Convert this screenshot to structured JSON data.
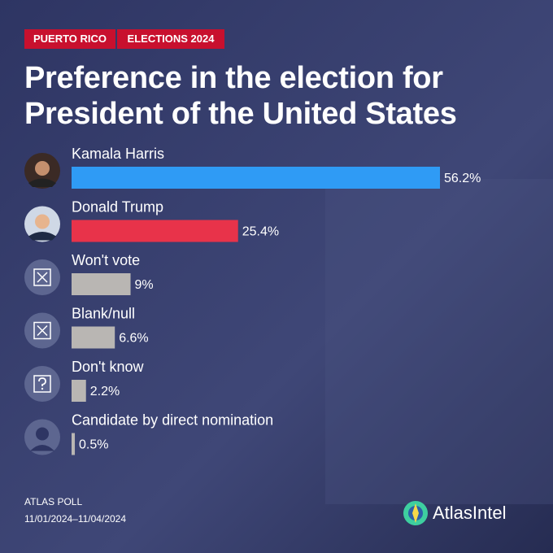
{
  "chart_data": {
    "type": "bar",
    "orientation": "horizontal",
    "tags": [
      "PUERTO RICO",
      "ELECTIONS 2024"
    ],
    "title": "Preference in the election for President of the United States",
    "categories": [
      "Kamala Harris",
      "Donald Trump",
      "Won't vote",
      "Blank/null",
      "Don't know",
      "Candidate by direct nomination"
    ],
    "values": [
      56.2,
      25.4,
      9,
      6.6,
      2.2,
      0.5
    ],
    "value_labels": [
      "56.2%",
      "25.4%",
      "9%",
      "6.6%",
      "2.2%",
      "0.5%"
    ],
    "colors": [
      "#2f9bf5",
      "#e8334a",
      "#b9b6b3",
      "#b9b6b3",
      "#b9b6b3",
      "#b9b6b3"
    ],
    "footer": {
      "poll": "ATLAS POLL",
      "dates": "11/01/2024–11/04/2024"
    },
    "brand": "AtlasIntel"
  }
}
